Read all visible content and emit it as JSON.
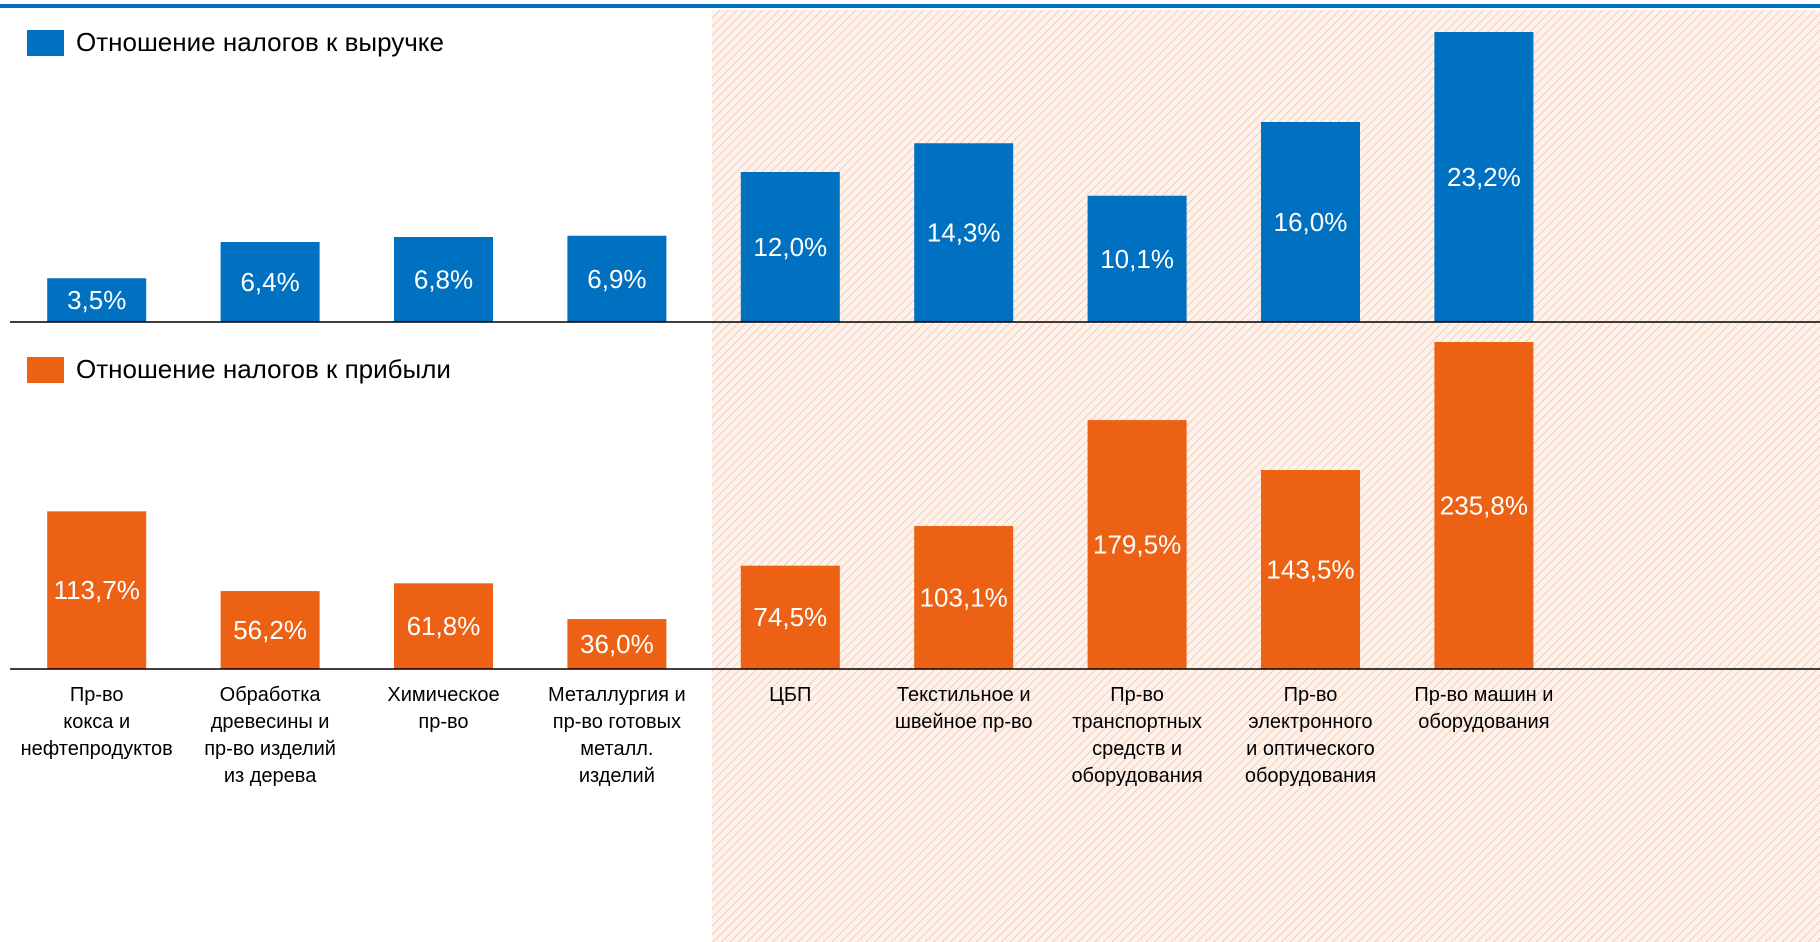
{
  "chart_data": {
    "type": "bar",
    "categories": [
      "Пр-во\nкокса и\nнефтепродуктов",
      "Обработка\nдревесины и\nпр-во изделий\nиз дерева",
      "Химическое\nпр-во",
      "Металлургия и\nпр-во готовых\nметалл.\nизделий",
      "ЦБП",
      "Текстильное и\nшвейное пр-во",
      "Пр-во\nтранспортных\nсредств и\nоборудования",
      "Пр-во\nэлектронного\nи оптического\nоборудования",
      "Пр-во машин и\nоборудования"
    ],
    "series": [
      {
        "name": "Отношение налогов к выручке",
        "color": "#0070c0",
        "values": [
          3.5,
          6.4,
          6.8,
          6.9,
          12.0,
          14.3,
          10.1,
          16.0,
          23.2
        ],
        "value_labels": [
          "3,5%",
          "6,4%",
          "6,8%",
          "6,9%",
          "12,0%",
          "14,3%",
          "10,1%",
          "16,0%",
          "23,2%"
        ]
      },
      {
        "name": "Отношение налогов к прибыли",
        "color": "#ec6114",
        "values": [
          113.7,
          56.2,
          61.8,
          36.0,
          74.5,
          103.1,
          179.5,
          143.5,
          235.8
        ],
        "value_labels": [
          "113,7%",
          "56,2%",
          "61,8%",
          "36,0%",
          "74,5%",
          "103,1%",
          "179,5%",
          "143,5%",
          "235,8%"
        ]
      }
    ]
  }
}
